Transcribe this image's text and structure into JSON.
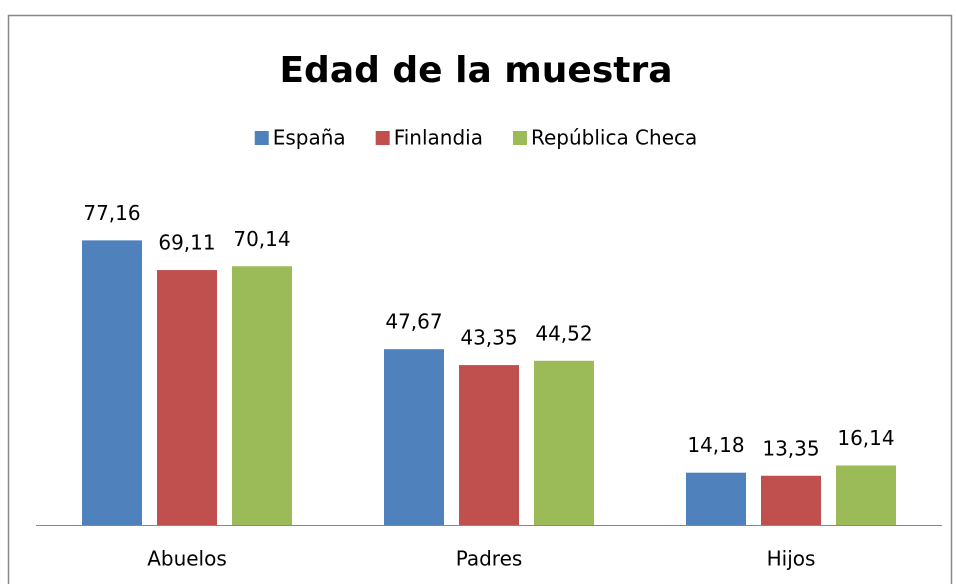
{
  "chart_data": {
    "type": "bar",
    "title": "Edad de la muestra",
    "categories": [
      "Abuelos",
      "Padres",
      "Hijos"
    ],
    "series": [
      {
        "name": "España",
        "color": "#4f81bd",
        "values": [
          77.16,
          47.67,
          14.18
        ],
        "value_labels": [
          "77,16",
          "47,67",
          "14,18"
        ]
      },
      {
        "name": "Finlandia",
        "color": "#c0504d",
        "values": [
          69.11,
          43.35,
          13.35
        ],
        "value_labels": [
          "69,11",
          "43,35",
          "13,35"
        ]
      },
      {
        "name": "República Checa",
        "color": "#9bbb59",
        "values": [
          70.14,
          44.52,
          16.14
        ],
        "value_labels": [
          "70,14",
          "44,52",
          "16,14"
        ]
      }
    ],
    "ylim": [
      0,
      90
    ],
    "legend": "top"
  }
}
